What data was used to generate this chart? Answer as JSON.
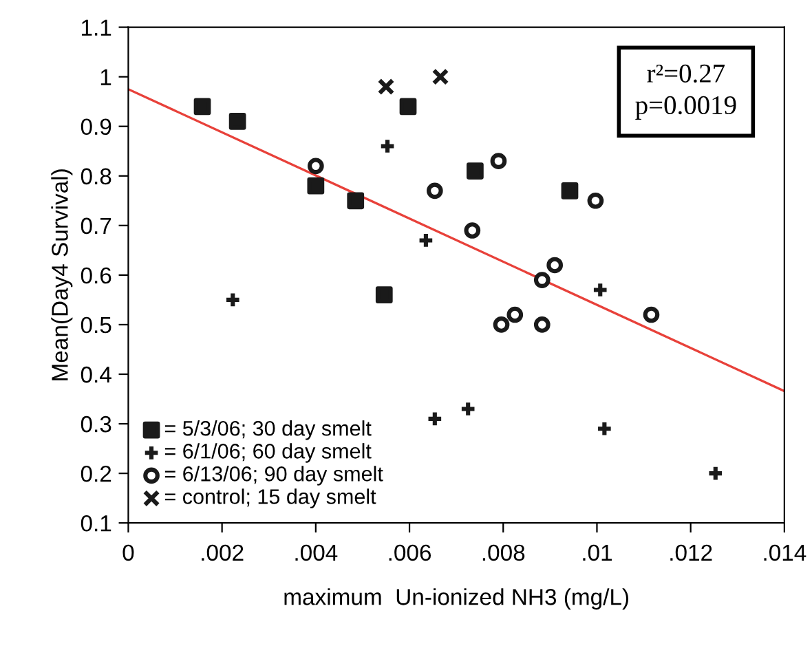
{
  "chart_data": {
    "type": "scatter",
    "xlabel": "maximum  Un-ionized NH3 (mg/L)",
    "ylabel": "Mean(Day4 Survival)",
    "series": [
      {
        "name": "= 5/3/06; 30 day smelt",
        "color": "#1a1a1a",
        "marker": "square",
        "x": [
          0.00158,
          0.00233,
          0.004,
          0.00485,
          0.00597,
          0.0074,
          0.00942,
          0.00546
        ],
        "values": [
          0.94,
          0.91,
          0.78,
          0.75,
          0.94,
          0.81,
          0.77,
          0.56
        ]
      },
      {
        "name": "= 6/1/06; 60 day smelt",
        "color": "#1a1a1a",
        "marker": "plus",
        "x": [
          0.00553,
          0.00635,
          0.01007,
          0.00223,
          0.00725,
          0.00654,
          0.01016,
          0.01253
        ],
        "values": [
          0.86,
          0.67,
          0.57,
          0.55,
          0.33,
          0.31,
          0.29,
          0.2
        ]
      },
      {
        "name": "= 6/13/06; 90 day smelt",
        "color": "#1a1a1a",
        "marker": "circle",
        "x": [
          0.004,
          0.00654,
          0.00734,
          0.0079,
          0.00997,
          0.0091,
          0.00883,
          0.00796,
          0.00825,
          0.00883,
          0.01116
        ],
        "values": [
          0.82,
          0.77,
          0.69,
          0.83,
          0.75,
          0.62,
          0.59,
          0.5,
          0.52,
          0.5,
          0.52
        ]
      },
      {
        "name": "= control; 15 day smelt",
        "color": "#1a1a1a",
        "marker": "cross",
        "x": [
          0.0055,
          0.00666
        ],
        "values": [
          0.98,
          1.0
        ]
      },
      {
        "type": "line",
        "color": "#e8413a",
        "x": [
          0,
          0.014
        ],
        "values": [
          0.975,
          0.366
        ]
      }
    ],
    "annotations": [
      "r²=0.27\np=0.0019"
    ],
    "xlim": [
      0,
      0.014
    ],
    "xticks": [
      {
        "value": 0,
        "label": "0"
      },
      {
        "value": 0.002,
        "label": ".002"
      },
      {
        "value": 0.004,
        "label": ".004"
      },
      {
        "value": 0.006,
        "label": ".006"
      },
      {
        "value": 0.008,
        "label": ".008"
      },
      {
        "value": 0.01,
        "label": ".01"
      },
      {
        "value": 0.012,
        "label": ".012"
      },
      {
        "value": 0.014,
        "label": ".014"
      }
    ],
    "ylim": [
      0.1,
      1.1
    ],
    "yticks": [
      0.1,
      0.2,
      0.3,
      0.4,
      0.5,
      0.6,
      0.7,
      0.8,
      0.9,
      {
        "value": 1,
        "label": "1"
      },
      1.1
    ],
    "legend": "bottom left",
    "grid": false
  }
}
